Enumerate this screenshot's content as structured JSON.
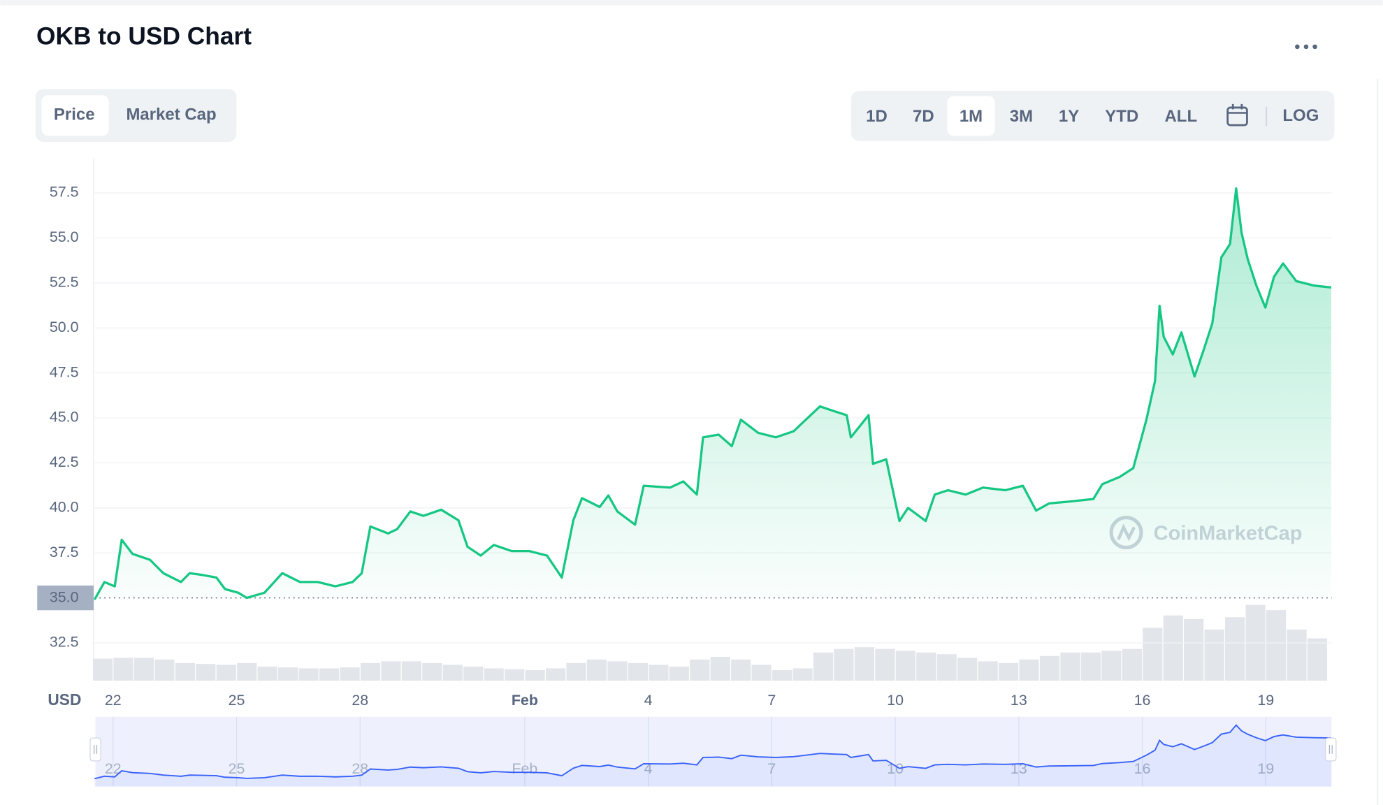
{
  "chart_data": {
    "type": "line",
    "title": "OKB to USD Chart",
    "y_unit": "USD",
    "color": "#16c784",
    "x": [
      -0.45,
      -0.21,
      0.04,
      0.21,
      0.47,
      0.9,
      1.22,
      1.65,
      1.86,
      2.18,
      2.51,
      2.72,
      3.04,
      3.25,
      3.68,
      4.11,
      4.54,
      4.97,
      5.4,
      5.82,
      6.04,
      6.25,
      6.68,
      6.9,
      7.22,
      7.54,
      7.97,
      8.39,
      8.61,
      8.93,
      9.25,
      9.68,
      10.11,
      10.54,
      10.9,
      11.18,
      11.39,
      11.82,
      12.03,
      12.25,
      12.68,
      12.89,
      13.53,
      13.85,
      14.18,
      14.33,
      14.71,
      15.03,
      15.25,
      15.67,
      16.1,
      16.53,
      17.17,
      17.49,
      17.82,
      17.92,
      18.35,
      18.46,
      18.78,
      19.1,
      19.31,
      19.74,
      19.96,
      20.28,
      20.71,
      21.13,
      21.67,
      22.1,
      22.42,
      22.74,
      23.17,
      23.81,
      24.03,
      24.45,
      24.78,
      25.1,
      25.31,
      25.42,
      25.52,
      25.74,
      25.95,
      26.27,
      26.49,
      26.7,
      26.92,
      27.13,
      27.28,
      27.41,
      27.56,
      27.77,
      27.99,
      28.2,
      28.42,
      28.74,
      29.17,
      29.59
    ],
    "values": [
      34.9,
      35.88,
      35.64,
      38.23,
      37.45,
      37.11,
      36.37,
      35.88,
      36.37,
      36.27,
      36.13,
      35.49,
      35.29,
      35.0,
      35.29,
      36.37,
      35.88,
      35.88,
      35.64,
      35.88,
      36.37,
      38.97,
      38.58,
      38.82,
      39.8,
      39.56,
      39.9,
      39.31,
      37.84,
      37.35,
      37.94,
      37.6,
      37.6,
      37.35,
      36.13,
      39.31,
      40.54,
      40.05,
      40.69,
      39.8,
      39.07,
      41.23,
      41.13,
      41.47,
      40.74,
      43.92,
      44.07,
      43.43,
      44.9,
      44.17,
      43.92,
      44.26,
      45.64,
      45.39,
      45.15,
      43.92,
      45.15,
      42.45,
      42.7,
      39.27,
      40.0,
      39.27,
      40.74,
      40.98,
      40.74,
      41.13,
      40.98,
      41.23,
      39.85,
      40.25,
      40.34,
      40.49,
      41.32,
      41.72,
      42.21,
      44.9,
      47.06,
      51.23,
      49.51,
      48.53,
      49.75,
      47.3,
      48.77,
      50.25,
      53.92,
      54.66,
      57.75,
      55.29,
      53.82,
      52.35,
      51.13,
      52.84,
      53.58,
      52.6,
      52.35,
      52.25
    ],
    "xlim": [
      -0.45,
      29.6
    ],
    "xticks": [
      {
        "value": 0,
        "label": "22"
      },
      {
        "value": 3,
        "label": "25"
      },
      {
        "value": 6,
        "label": "28"
      },
      {
        "value": 10,
        "label": "Feb"
      },
      {
        "value": 13,
        "label": "4"
      },
      {
        "value": 16,
        "label": "7"
      },
      {
        "value": 19,
        "label": "10"
      },
      {
        "value": 22,
        "label": "13"
      },
      {
        "value": 25,
        "label": "16"
      },
      {
        "value": 28,
        "label": "19"
      }
    ],
    "ylim": [
      30.4,
      59.4
    ],
    "yticks": [
      32.5,
      {
        "value": 35,
        "label": "35.0"
      },
      37.5,
      {
        "value": 40,
        "label": "40.0"
      },
      42.5,
      {
        "value": 45,
        "label": "45.0"
      },
      47.5,
      {
        "value": 50,
        "label": "50.0"
      },
      52.5,
      {
        "value": 55,
        "label": "55.0"
      },
      57.5
    ],
    "reference_line": 35,
    "grid": true,
    "volume": {
      "color": "#e2e5ea",
      "ylim": [
        0,
        100
      ],
      "x": [
        -0.25,
        0.25,
        0.75,
        1.25,
        1.75,
        2.25,
        2.75,
        3.25,
        3.75,
        4.25,
        4.75,
        5.25,
        5.75,
        6.25,
        6.75,
        7.25,
        7.75,
        8.25,
        8.75,
        9.25,
        9.75,
        10.25,
        10.75,
        11.25,
        11.75,
        12.25,
        12.75,
        13.25,
        13.75,
        14.25,
        14.75,
        15.25,
        15.75,
        16.25,
        16.75,
        17.25,
        17.75,
        18.25,
        18.75,
        19.25,
        19.75,
        20.25,
        20.75,
        21.25,
        21.75,
        22.25,
        22.75,
        23.25,
        23.75,
        24.25,
        24.75,
        25.25,
        25.75,
        26.25,
        26.75,
        27.25,
        27.75,
        28.25,
        28.75,
        29.25
      ],
      "values": [
        25,
        26,
        26,
        24,
        20,
        19,
        18,
        20,
        16,
        15,
        14,
        14,
        15,
        20,
        22,
        22,
        20,
        18,
        16,
        14,
        13,
        12,
        14,
        20,
        24,
        22,
        20,
        18,
        16,
        24,
        27,
        24,
        18,
        12,
        14,
        32,
        36,
        38,
        36,
        34,
        32,
        30,
        26,
        22,
        20,
        24,
        28,
        32,
        32,
        34,
        36,
        60,
        74,
        70,
        58,
        72,
        86,
        80,
        58,
        48
      ]
    },
    "navigator_color": "#3861fb",
    "watermark": "CoinMarketCap"
  },
  "controls": {
    "tabs": [
      "Price",
      "Market Cap"
    ],
    "selected_tab": "Price",
    "ranges": [
      "1D",
      "7D",
      "1M",
      "3M",
      "1Y",
      "YTD",
      "ALL"
    ],
    "selected_range": "1M",
    "log": "LOG"
  }
}
